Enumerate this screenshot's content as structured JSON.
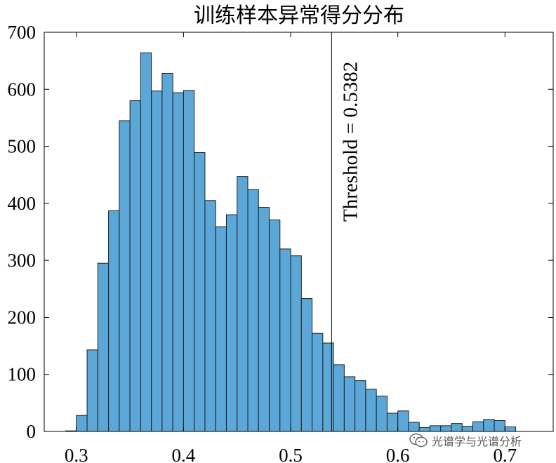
{
  "chart_data": {
    "type": "bar",
    "title": "训练样本异常得分分布",
    "xlabel": "",
    "ylabel": "",
    "bin_width": 0.01,
    "bin_start": 0.29,
    "values": [
      1,
      28,
      143,
      295,
      387,
      545,
      580,
      664,
      597,
      628,
      594,
      598,
      489,
      405,
      359,
      380,
      447,
      424,
      393,
      371,
      320,
      308,
      233,
      172,
      155,
      117,
      96,
      89,
      74,
      62,
      32,
      36,
      16,
      7,
      10,
      10,
      14,
      9,
      17,
      21,
      19,
      8
    ],
    "xlim": [
      0.27,
      0.745
    ],
    "ylim": [
      0,
      700
    ],
    "x_ticks": [
      0.3,
      0.4,
      0.5,
      0.6,
      0.7
    ],
    "x_tick_labels": [
      "0.3",
      "0.4",
      "0.5",
      "0.6",
      "0.7"
    ],
    "y_ticks": [
      0,
      100,
      200,
      300,
      400,
      500,
      600,
      700
    ],
    "y_tick_labels": [
      "0",
      "100",
      "200",
      "300",
      "400",
      "500",
      "600",
      "700"
    ],
    "threshold": 0.5382,
    "threshold_label": "Threshold = 0.5382",
    "bar_color": "#5ba7d7",
    "edge_color": "#1f1f1f",
    "grid": false
  },
  "watermark": {
    "text": "光谱学与光谱分析",
    "icon": "wechat-icon"
  }
}
